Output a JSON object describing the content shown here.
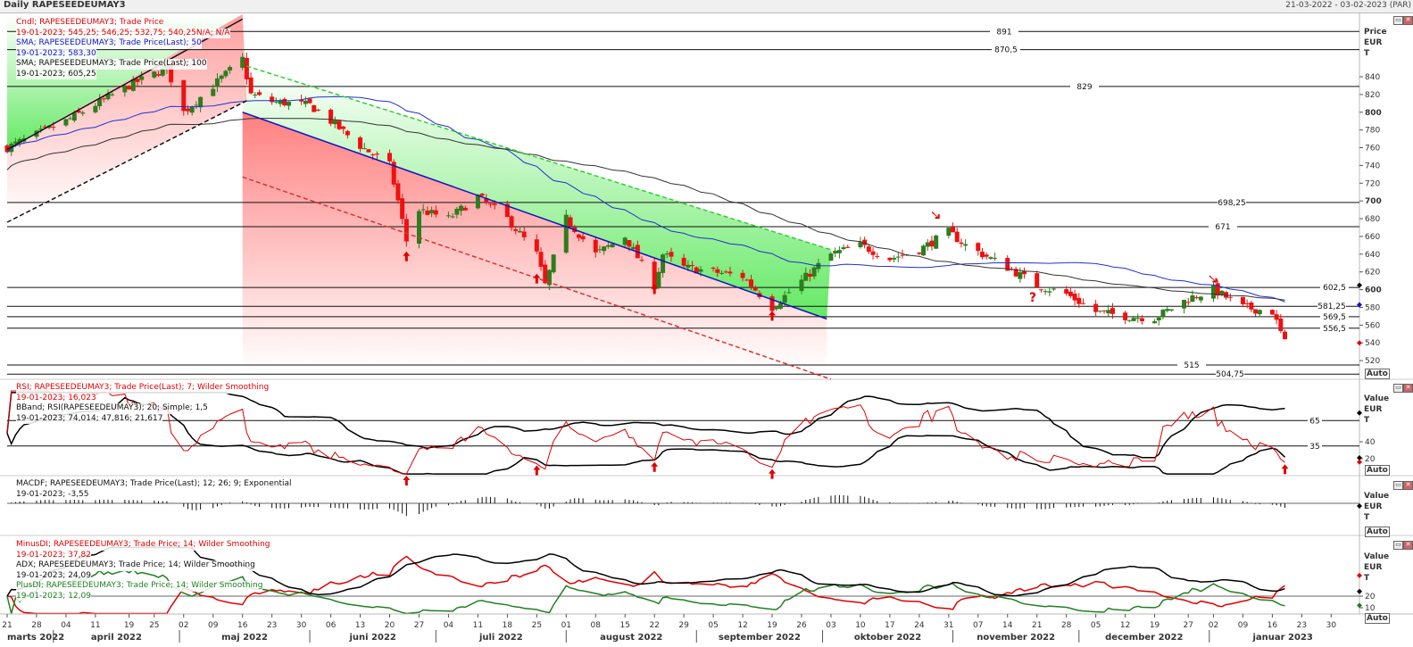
{
  "header": {
    "title": "Daily RAPESEEDEUMAY3",
    "date_range": "21-03-2022 - 03-02-2023 (PAR)"
  },
  "legends": {
    "candle": {
      "label": "Cndl; RAPESEEDEUMAY3; Trade Price",
      "value": "19-01-2023; 545,25; 546,25; 532,75; 540,25N/A; N/A"
    },
    "sma50": {
      "label": "SMA; RAPESEEDEUMAY3; Trade Price(Last);  50",
      "value": "19-01-2023; 583,30"
    },
    "sma100": {
      "label": "SMA; RAPESEEDEUMAY3; Trade Price(Last);  100",
      "value": "19-01-2023; 605,25"
    },
    "rsi": {
      "label": "RSI; RAPESEEDEUMAY3; Trade Price(Last);  7; Wilder Smoothing",
      "value": "19-01-2023; 16,023"
    },
    "bband": {
      "label": "BBand; RSI(RAPESEEDEUMAY3);  20; Simple; 1,5",
      "value": "19-01-2023; 74,014; 47,816; 21,617"
    },
    "macd": {
      "label": "MACDF; RAPESEEDEUMAY3; Trade Price(Last);  12; 26; 9; Exponential",
      "value": "19-01-2023; -3,55"
    },
    "minusdi": {
      "label": "MinusDI; RAPESEEDEUMAY3; Trade Price;  14; Wilder Smoothing",
      "value": "19-01-2023; 37,82"
    },
    "adx": {
      "label": "ADX; RAPESEEDEUMAY3; Trade Price;  14; Wilder Smoothing",
      "value": "19-01-2023; 24,09"
    },
    "plusdi": {
      "label": "PlusDI; RAPESEEDEUMAY3; Trade Price;  14; Wilder Smoothing",
      "value": "19-01-2023; 12,09"
    }
  },
  "axes": {
    "price_unit": [
      "Price",
      "EUR",
      "T"
    ],
    "value_unit": [
      "Value",
      "EUR",
      "T"
    ],
    "auto_label": "Auto",
    "question_mark": "?"
  },
  "chart_data": {
    "type": "candlestick",
    "title": "Daily RAPESEEDEUMAY3",
    "ylabel": "Price EUR/T",
    "ylim": [
      496,
      900
    ],
    "price_ticks": [
      520,
      540,
      560,
      580,
      600,
      620,
      640,
      660,
      680,
      700,
      720,
      740,
      760,
      780,
      800,
      820,
      840
    ],
    "closes_keypoints": [
      [
        "2022-03-21",
        760
      ],
      [
        "2022-04-04",
        790
      ],
      [
        "2022-04-19",
        830
      ],
      [
        "2022-04-28",
        850
      ],
      [
        "2022-05-02",
        800
      ],
      [
        "2022-05-09",
        830
      ],
      [
        "2022-05-16",
        860
      ],
      [
        "2022-05-18",
        820
      ],
      [
        "2022-05-23",
        812
      ],
      [
        "2022-06-01",
        808
      ],
      [
        "2022-06-06",
        790
      ],
      [
        "2022-06-13",
        762
      ],
      [
        "2022-06-20",
        740
      ],
      [
        "2022-06-22",
        700
      ],
      [
        "2022-06-24",
        655
      ],
      [
        "2022-06-27",
        690
      ],
      [
        "2022-07-04",
        680
      ],
      [
        "2022-07-11",
        705
      ],
      [
        "2022-07-18",
        680
      ],
      [
        "2022-07-25",
        640
      ],
      [
        "2022-07-27",
        605
      ],
      [
        "2022-08-01",
        680
      ],
      [
        "2022-08-08",
        640
      ],
      [
        "2022-08-15",
        660
      ],
      [
        "2022-08-22",
        605
      ],
      [
        "2022-08-24",
        640
      ],
      [
        "2022-08-29",
        625
      ],
      [
        "2022-09-05",
        620
      ],
      [
        "2022-09-12",
        615
      ],
      [
        "2022-09-19",
        580
      ],
      [
        "2022-09-26",
        610
      ],
      [
        "2022-10-03",
        640
      ],
      [
        "2022-10-10",
        650
      ],
      [
        "2022-10-17",
        635
      ],
      [
        "2022-10-24",
        645
      ],
      [
        "2022-10-31",
        665
      ],
      [
        "2022-11-04",
        650
      ],
      [
        "2022-11-14",
        625
      ],
      [
        "2022-11-21",
        605
      ],
      [
        "2022-11-28",
        595
      ],
      [
        "2022-12-05",
        575
      ],
      [
        "2022-12-12",
        570
      ],
      [
        "2022-12-19",
        568
      ],
      [
        "2022-12-27",
        590
      ],
      [
        "2023-01-02",
        600
      ],
      [
        "2023-01-09",
        580
      ],
      [
        "2023-01-16",
        575
      ],
      [
        "2023-01-19",
        540
      ]
    ],
    "levels": [
      891,
      870.5,
      829,
      698.25,
      671,
      602.5,
      581.25,
      569.5,
      556.5,
      515,
      504.75
    ],
    "level_labels": [
      "891",
      "870,5",
      "829",
      "698,25",
      "671",
      "602,5",
      "581,25",
      "569,5",
      "556,5",
      "515",
      "504,75"
    ],
    "trendlines": [
      {
        "name": "downtrend-support",
        "color": "#1010c0",
        "dash": false,
        "from": [
          "2022-05-16",
          800
        ],
        "to": [
          "2022-10-02",
          567
        ]
      },
      {
        "name": "downtrend-upper",
        "color": "#30d030",
        "dash": true,
        "from": [
          "2022-05-17",
          852
        ],
        "to": [
          "2022-10-03",
          645
        ]
      },
      {
        "name": "downtrend-lower",
        "color": "#e03030",
        "dash": true,
        "from": [
          "2022-05-16",
          727
        ],
        "to": [
          "2022-10-03",
          499
        ]
      },
      {
        "name": "uptrend-lower",
        "color": "#111111",
        "dash": true,
        "from": [
          "2022-03-21",
          676
        ],
        "to": [
          "2022-05-17",
          813
        ]
      },
      {
        "name": "uptrend-upper",
        "color": "#111111",
        "dash": false,
        "from": [
          "2022-03-21",
          758
        ],
        "to": [
          "2022-05-16",
          905
        ]
      }
    ],
    "arrows_up": [
      [
        "2022-06-24",
        635
      ],
      [
        "2022-07-25",
        610
      ],
      [
        "2022-08-22",
        598
      ],
      [
        "2022-09-19",
        568
      ],
      [
        "2023-01-19",
        0
      ]
    ],
    "arrows_down": [
      [
        "2022-10-28",
        684
      ],
      [
        "2023-01-02",
        612
      ]
    ],
    "question": [
      "2022-11-21",
      586
    ],
    "rsi_levels": [
      65,
      35
    ],
    "rsi_ticks": [
      20,
      40
    ],
    "dmi_ticks": [
      10,
      20
    ],
    "x_ticks": [
      "2022-03-21",
      "2022-03-28",
      "2022-04-04",
      "2022-04-11",
      "2022-04-19",
      "2022-04-25",
      "2022-05-02",
      "2022-05-09",
      "2022-05-16",
      "2022-05-23",
      "2022-05-30",
      "2022-06-06",
      "2022-06-13",
      "2022-06-20",
      "2022-06-27",
      "2022-07-04",
      "2022-07-11",
      "2022-07-18",
      "2022-07-25",
      "2022-08-01",
      "2022-08-08",
      "2022-08-15",
      "2022-08-22",
      "2022-08-29",
      "2022-09-05",
      "2022-09-12",
      "2022-09-19",
      "2022-09-26",
      "2022-10-03",
      "2022-10-10",
      "2022-10-17",
      "2022-10-24",
      "2022-10-31",
      "2022-11-07",
      "2022-11-14",
      "2022-11-21",
      "2022-11-28",
      "2022-12-05",
      "2022-12-12",
      "2022-12-19",
      "2022-12-27",
      "2023-01-02",
      "2023-01-09",
      "2023-01-16",
      "2023-01-23",
      "2023-01-30"
    ],
    "x_tick_labels": [
      "21",
      "28",
      "04",
      "11",
      "19",
      "25",
      "02",
      "09",
      "16",
      "23",
      "30",
      "06",
      "13",
      "20",
      "27",
      "04",
      "11",
      "18",
      "25",
      "01",
      "08",
      "15",
      "22",
      "29",
      "05",
      "12",
      "19",
      "26",
      "03",
      "10",
      "17",
      "24",
      "31",
      "07",
      "14",
      "21",
      "28",
      "05",
      "12",
      "19",
      "27",
      "02",
      "09",
      "16",
      "23",
      "30"
    ],
    "months": [
      [
        "2022-03-01",
        "marts 2022"
      ],
      [
        "2022-04-01",
        "april 2022"
      ],
      [
        "2022-05-01",
        "maj 2022"
      ],
      [
        "2022-06-01",
        "juni 2022"
      ],
      [
        "2022-07-01",
        "juli 2022"
      ],
      [
        "2022-08-01",
        "august 2022"
      ],
      [
        "2022-09-01",
        "september 2022"
      ],
      [
        "2022-10-01",
        "oktober 2022"
      ],
      [
        "2022-11-01",
        "november 2022"
      ],
      [
        "2022-12-01",
        "december 2022"
      ],
      [
        "2023-01-01",
        "januar 2023"
      ]
    ]
  },
  "colors": {
    "up": "#2e7d1e",
    "down": "#ee1111",
    "sma50": "#2030d0",
    "sma100": "#333333",
    "rsi": "#e00000",
    "bb": "#000000",
    "plusdi": "#208020",
    "minusdi": "#e00000",
    "adx": "#000000"
  }
}
